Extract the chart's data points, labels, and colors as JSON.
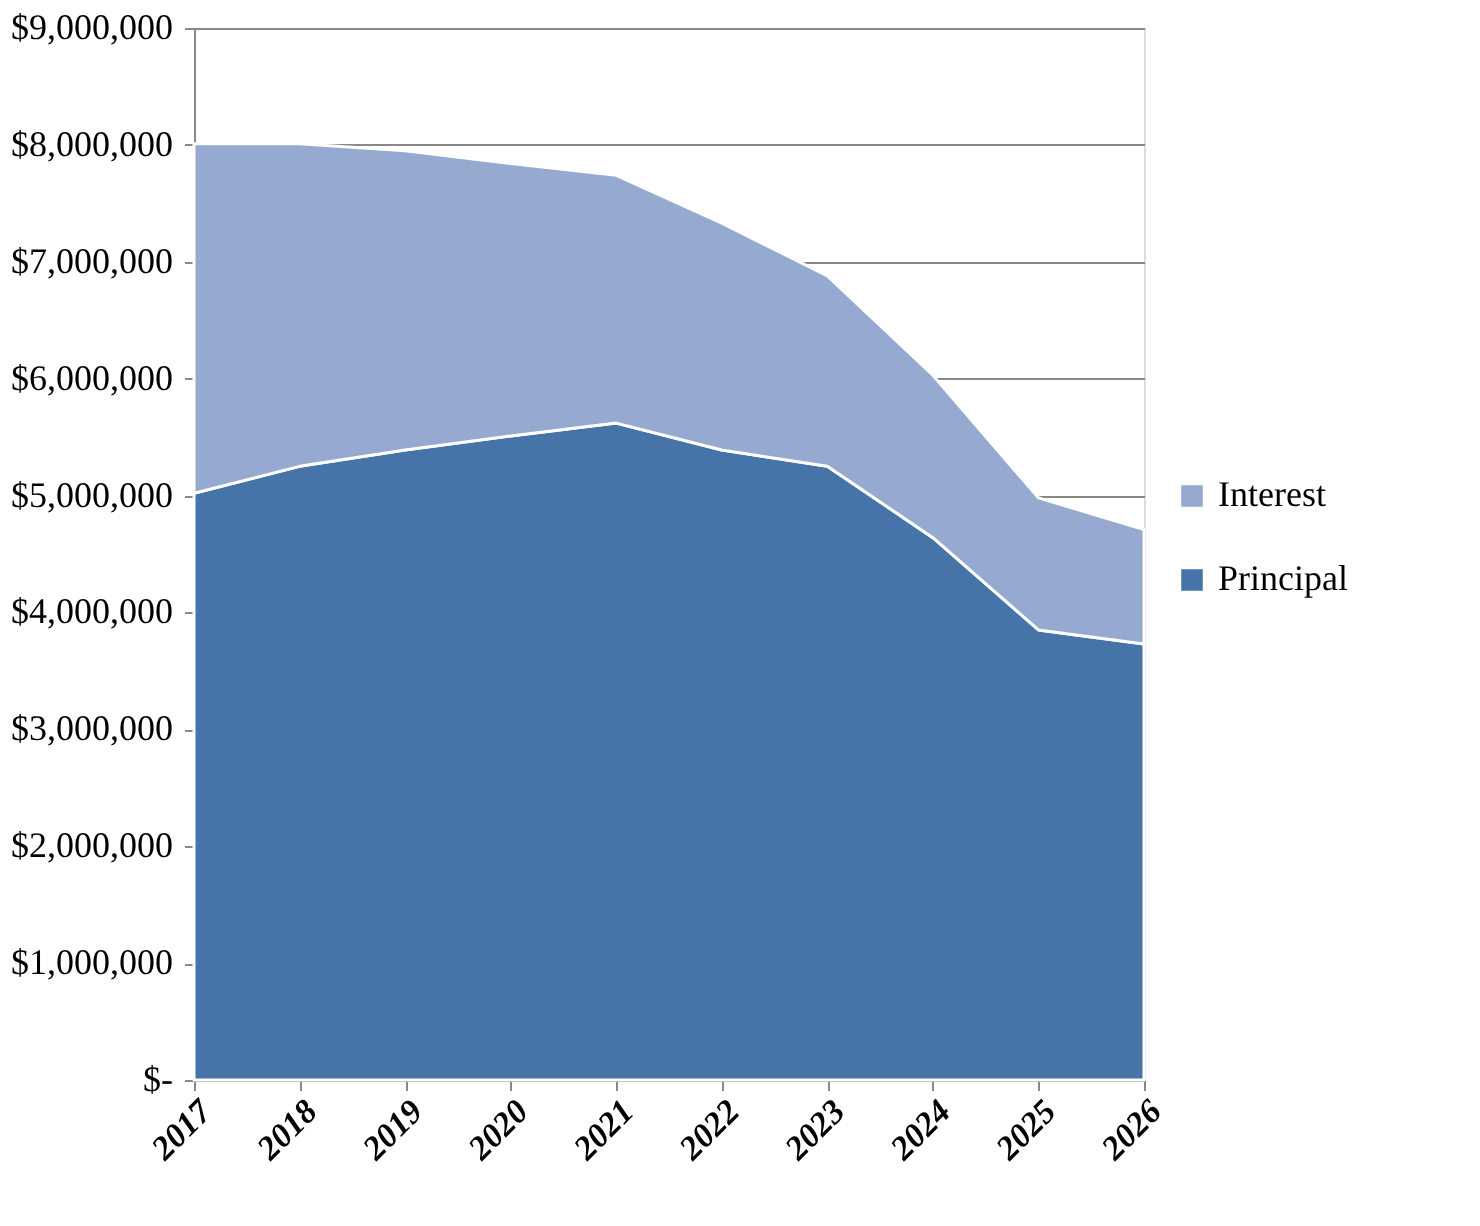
{
  "chart_data": {
    "type": "area",
    "stacked": true,
    "categories": [
      "2017",
      "2018",
      "2019",
      "2020",
      "2021",
      "2022",
      "2023",
      "2024",
      "2025",
      "2026"
    ],
    "series": [
      {
        "name": "Principal",
        "color": "#4674a8",
        "values": [
          5020000,
          5250000,
          5390000,
          5510000,
          5620000,
          5390000,
          5250000,
          4640000,
          3850000,
          3730000
        ]
      },
      {
        "name": "Interest",
        "color": "#95a9d1",
        "values": [
          2990000,
          2760000,
          2560000,
          2330000,
          2120000,
          1940000,
          1630000,
          1390000,
          1130000,
          980000
        ]
      }
    ],
    "ylim": [
      0,
      9000000
    ],
    "yticks": [
      {
        "value": 0,
        "label": "$-"
      },
      {
        "value": 1000000,
        "label": "$1,000,000"
      },
      {
        "value": 2000000,
        "label": "$2,000,000"
      },
      {
        "value": 3000000,
        "label": "$3,000,000"
      },
      {
        "value": 4000000,
        "label": "$4,000,000"
      },
      {
        "value": 5000000,
        "label": "$5,000,000"
      },
      {
        "value": 6000000,
        "label": "$6,000,000"
      },
      {
        "value": 7000000,
        "label": "$7,000,000"
      },
      {
        "value": 8000000,
        "label": "$8,000,000"
      },
      {
        "value": 9000000,
        "label": "$9,000,000"
      }
    ],
    "grid": "y",
    "legend": "right"
  }
}
